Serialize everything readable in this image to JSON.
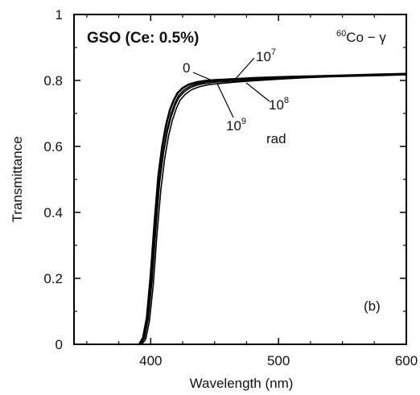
{
  "chart_data": {
    "type": "line",
    "title": "GSO (Ce: 0.5%)",
    "source_label": {
      "mass_number": "60",
      "text": "Co − γ"
    },
    "panel_label": "(b)",
    "xlabel": "Wavelength (nm)",
    "ylabel": "Transmittance",
    "xlim": [
      340,
      600
    ],
    "ylim": [
      0,
      1
    ],
    "x_ticks": [
      400,
      500,
      600
    ],
    "x_tick_labels": [
      "400",
      "500",
      "600"
    ],
    "y_ticks": [
      0,
      0.2,
      0.4,
      0.6,
      0.8,
      1
    ],
    "y_tick_labels": [
      "0",
      "0.2",
      "0.4",
      "0.6",
      "0.8",
      "1"
    ],
    "grid": false,
    "legend": "none",
    "series": [
      {
        "name": "0",
        "x": [
          391,
          394,
          397,
          400,
          403,
          406,
          409,
          412,
          415,
          418,
          421,
          425,
          430,
          436,
          443,
          450,
          460,
          470,
          480,
          500,
          520,
          540,
          560,
          580,
          600
        ],
        "y": [
          0.0,
          0.02,
          0.08,
          0.21,
          0.37,
          0.51,
          0.6,
          0.665,
          0.71,
          0.74,
          0.762,
          0.777,
          0.788,
          0.795,
          0.799,
          0.801,
          0.803,
          0.805,
          0.807,
          0.81,
          0.812,
          0.814,
          0.816,
          0.818,
          0.82
        ],
        "color": "#000000"
      },
      {
        "name": "10^7",
        "x": [
          392,
          395,
          398,
          401,
          404,
          407,
          410,
          413,
          416,
          419,
          422,
          426,
          431,
          437,
          444,
          451,
          460,
          470,
          480,
          500,
          520,
          540,
          560,
          580,
          600
        ],
        "y": [
          0.0,
          0.02,
          0.08,
          0.2,
          0.36,
          0.5,
          0.59,
          0.655,
          0.7,
          0.732,
          0.755,
          0.771,
          0.783,
          0.791,
          0.796,
          0.799,
          0.801,
          0.803,
          0.805,
          0.808,
          0.811,
          0.813,
          0.815,
          0.817,
          0.819
        ],
        "color": "#000000"
      },
      {
        "name": "10^8",
        "x": [
          392,
          395,
          398,
          401,
          404,
          407,
          410,
          413,
          416,
          419,
          422,
          426,
          431,
          437,
          444,
          451,
          460,
          470,
          480,
          500,
          520,
          540,
          560,
          580,
          600
        ],
        "y": [
          0.0,
          0.018,
          0.075,
          0.19,
          0.35,
          0.49,
          0.58,
          0.645,
          0.69,
          0.724,
          0.748,
          0.765,
          0.778,
          0.787,
          0.792,
          0.795,
          0.797,
          0.799,
          0.802,
          0.806,
          0.809,
          0.812,
          0.814,
          0.816,
          0.818
        ],
        "color": "#000000"
      },
      {
        "name": "10^9",
        "x": [
          393,
          396,
          399,
          402,
          405,
          408,
          411,
          414,
          417,
          420,
          423,
          427,
          432,
          438,
          445,
          452,
          460,
          470,
          480,
          500,
          520,
          540,
          560,
          580,
          600
        ],
        "y": [
          0.0,
          0.015,
          0.07,
          0.18,
          0.34,
          0.47,
          0.565,
          0.632,
          0.68,
          0.715,
          0.74,
          0.758,
          0.772,
          0.781,
          0.787,
          0.79,
          0.793,
          0.796,
          0.799,
          0.804,
          0.808,
          0.811,
          0.813,
          0.815,
          0.817
        ],
        "color": "#000000"
      }
    ],
    "annotations": {
      "dose_0": "0",
      "dose_1e7": {
        "base": "10",
        "exp": "7"
      },
      "dose_1e8": {
        "base": "10",
        "exp": "8"
      },
      "dose_1e9": {
        "base": "10",
        "exp": "9"
      },
      "unit": "rad"
    }
  }
}
